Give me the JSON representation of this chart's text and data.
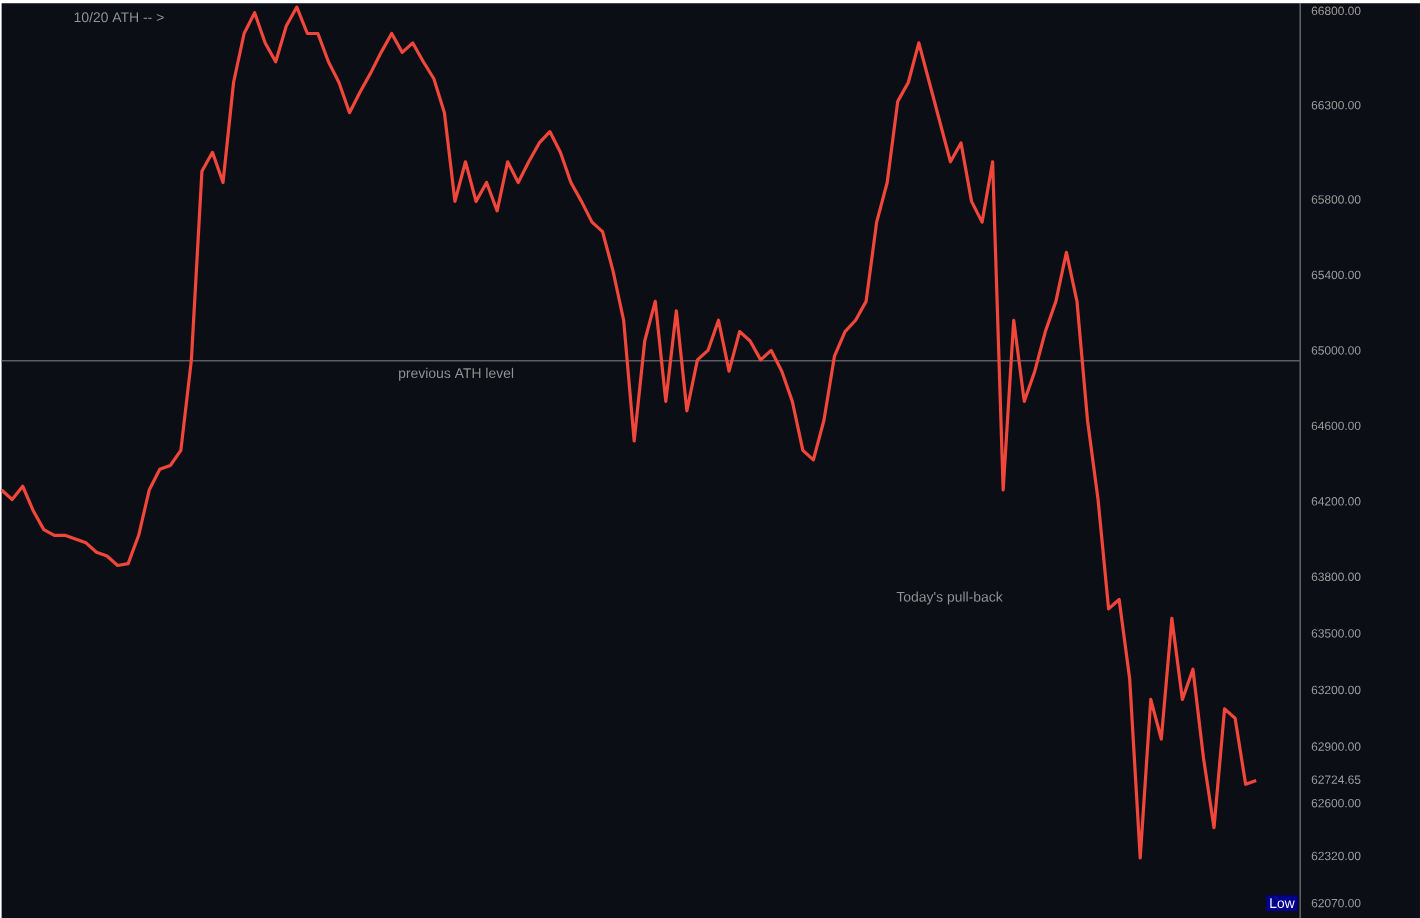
{
  "chart_data": {
    "type": "line",
    "color": "#f0473a",
    "categories": [
      null,
      null,
      null,
      null,
      null,
      null,
      null,
      null,
      null,
      null,
      null,
      null,
      null,
      null,
      null,
      null,
      null,
      null,
      null,
      null,
      null,
      null,
      null,
      null,
      null,
      null,
      null,
      null,
      null,
      null,
      null,
      null,
      null,
      null,
      null,
      null,
      null,
      null,
      null,
      null,
      null,
      null,
      null,
      null,
      null,
      null,
      null,
      null,
      null,
      null,
      null,
      null,
      null,
      null,
      null,
      null,
      null,
      null,
      null,
      null,
      null,
      null,
      null,
      null,
      null,
      null,
      null,
      null,
      null,
      null,
      null,
      null,
      null,
      null,
      null,
      null,
      null,
      null,
      null,
      null,
      null,
      null,
      null,
      null,
      null,
      null,
      null,
      null,
      null,
      null,
      null,
      null,
      null,
      null,
      null,
      null,
      null,
      null,
      null,
      null,
      null,
      null,
      null,
      null,
      null,
      null,
      null,
      null,
      null,
      null,
      null,
      null,
      null,
      null,
      null,
      null,
      null,
      null,
      null,
      null
    ],
    "values": [
      64260,
      64210,
      64280,
      64150,
      64050,
      64020,
      64020,
      64000,
      63980,
      63930,
      63910,
      63860,
      63870,
      64020,
      64260,
      64370,
      64390,
      64470,
      64950,
      65950,
      66050,
      65890,
      66420,
      66680,
      66790,
      66630,
      66530,
      66720,
      66820,
      66680,
      66680,
      66530,
      66420,
      66260,
      66370,
      66470,
      66580,
      66680,
      66580,
      66630,
      66530,
      66440,
      66260,
      65790,
      66000,
      65790,
      65890,
      65740,
      66000,
      65890,
      66000,
      66100,
      66160,
      66050,
      65890,
      65790,
      65680,
      65630,
      65420,
      65160,
      64520,
      65050,
      65260,
      64730,
      65210,
      64680,
      64950,
      65000,
      65160,
      64890,
      65100,
      65050,
      64950,
      65000,
      64890,
      64730,
      64470,
      64420,
      64630,
      64970,
      65100,
      65160,
      65260,
      65680,
      65890,
      66320,
      66420,
      66630,
      66420,
      66210,
      66000,
      66100,
      65790,
      65680,
      66000,
      64260,
      65160,
      64730,
      64890,
      65100,
      65260,
      65520,
      65260,
      64630,
      64210,
      63630,
      63680,
      63260,
      62310,
      63150,
      62940,
      63580,
      63150,
      63310,
      62840,
      62470,
      63100,
      63050,
      62700,
      62720
    ],
    "ylim": [
      61990,
      66840
    ],
    "yticks": [
      {
        "value": 66800,
        "label": "66800.00"
      },
      {
        "value": 66300,
        "label": "66300.00"
      },
      {
        "value": 65800,
        "label": "65800.00"
      },
      {
        "value": 65400,
        "label": "65400.00"
      },
      {
        "value": 65000,
        "label": "65000.00"
      },
      {
        "value": 64600,
        "label": "64600.00"
      },
      {
        "value": 64200,
        "label": "64200.00"
      },
      {
        "value": 63800,
        "label": "63800.00"
      },
      {
        "value": 63500,
        "label": "63500.00"
      },
      {
        "value": 63200,
        "label": "63200.00"
      },
      {
        "value": 62900,
        "label": "62900.00"
      },
      {
        "value": 62724.65,
        "label": "62724.65"
      },
      {
        "value": 62600,
        "label": "62600.00"
      },
      {
        "value": 62320,
        "label": "62320.00"
      },
      {
        "value": 62070,
        "label": "62070.00"
      }
    ],
    "ref_lines": [
      {
        "axis": "y",
        "value": 64945,
        "label": "previous ATH level",
        "color": "#5a5d66"
      }
    ],
    "annotations": [
      "10/20 ATH -- >",
      "Today's pull-back",
      "Low"
    ],
    "grid": false,
    "marker": "none",
    "line_style": "solid"
  }
}
